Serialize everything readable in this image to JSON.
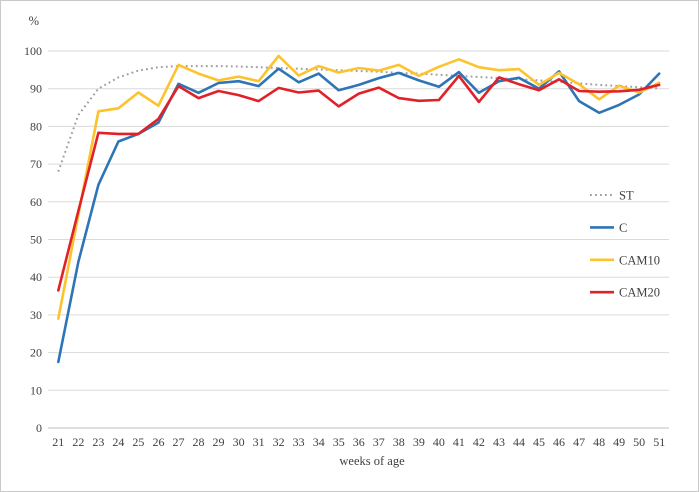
{
  "chart_data": {
    "type": "line",
    "title": "",
    "xlabel": "weeks of age",
    "ylabel": "%",
    "weeks": [
      21,
      22,
      23,
      24,
      25,
      26,
      27,
      28,
      29,
      30,
      31,
      32,
      33,
      34,
      35,
      36,
      37,
      38,
      39,
      40,
      41,
      42,
      43,
      44,
      45,
      46,
      47,
      48,
      49,
      50,
      51
    ],
    "x_tick_labels": [
      "21",
      "22",
      "23",
      "24",
      "25",
      "26",
      "27",
      "28",
      "29",
      "30",
      "31",
      "32",
      "33",
      "34",
      "35",
      "36",
      "37",
      "38",
      "39",
      "40",
      "41",
      "42",
      "43",
      "44",
      "45",
      "46",
      "47",
      "48",
      "49",
      "50",
      "51"
    ],
    "y_tick_labels": [
      "0",
      "10",
      "20",
      "30",
      "40",
      "50",
      "60",
      "70",
      "80",
      "90",
      "100"
    ],
    "ylim": [
      0,
      100
    ],
    "grid": true,
    "legend_position": "right-inside",
    "series": [
      {
        "name": "ST",
        "style": "dotted",
        "color": "#9e9e9e",
        "values": [
          68,
          83,
          90,
          93,
          94.8,
          95.7,
          96,
          96,
          96,
          95.9,
          95.7,
          95.5,
          95.3,
          95.1,
          94.9,
          94.7,
          94.5,
          94.2,
          94,
          93.7,
          93.4,
          93.1,
          92.8,
          92.5,
          92.2,
          91.8,
          91.4,
          91,
          90.7,
          90.4,
          90.1
        ]
      },
      {
        "name": "C",
        "style": "solid",
        "color": "#2e75b6",
        "values": [
          17.5,
          44,
          64.5,
          76,
          78,
          81,
          91.3,
          88.9,
          91.5,
          92,
          90.7,
          95.3,
          91.7,
          94,
          89.6,
          91,
          92.8,
          94.2,
          92.2,
          90.5,
          94.4,
          88.9,
          92,
          92.9,
          90,
          94.6,
          86.7,
          83.6,
          85.7,
          88.5,
          94
        ]
      },
      {
        "name": "CAM10",
        "style": "solid",
        "color": "#fdc32d",
        "values": [
          29,
          56.5,
          84,
          84.8,
          89,
          85.5,
          96.3,
          94,
          92.2,
          93.2,
          92,
          98.7,
          93.5,
          96,
          94.3,
          95.5,
          94.8,
          96.3,
          93.4,
          95.8,
          97.8,
          95.7,
          94.9,
          95.2,
          91,
          94.2,
          91.2,
          87.2,
          90.8,
          89,
          91.6
        ]
      },
      {
        "name": "CAM20",
        "style": "solid",
        "color": "#e02228",
        "values": [
          36.5,
          57.5,
          78.3,
          78,
          78,
          82,
          90.7,
          87.5,
          89.4,
          88.3,
          86.7,
          90.2,
          89,
          89.5,
          85.3,
          88.7,
          90.3,
          87.5,
          86.8,
          87,
          93.4,
          86.5,
          93,
          91.2,
          89.6,
          92.5,
          89.4,
          89.2,
          89.3,
          89.7,
          91
        ]
      }
    ],
    "style_colors": {
      "gridline": "#dadada",
      "axis_line": "#c0c0c0",
      "text": "#404040"
    }
  }
}
